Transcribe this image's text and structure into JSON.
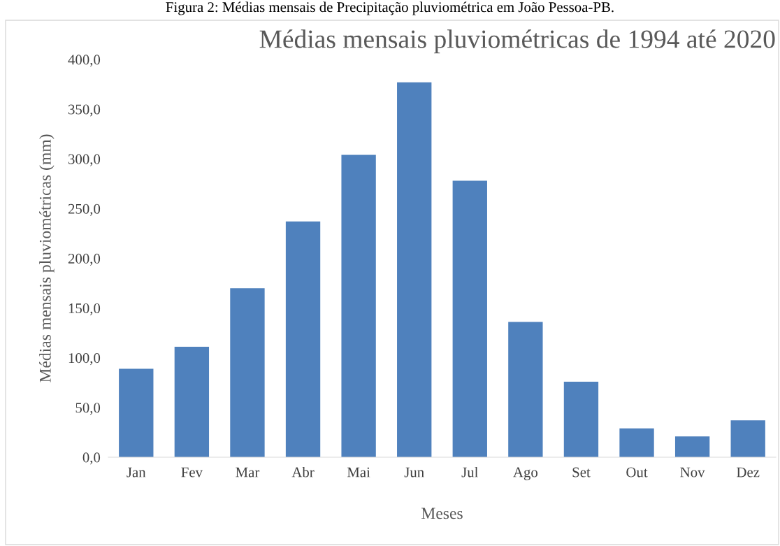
{
  "chart_data": {
    "type": "bar",
    "title": "Médias mensais pluviométricas de 1994 até 2020",
    "xlabel": "Meses",
    "ylabel": "Médias mensais pluviométricas (mm)",
    "annotations": [
      "Figura 2: Médias mensais de Precipitação pluviométrica em João Pessoa-PB."
    ],
    "categories": [
      "Jan",
      "Fev",
      "Mar",
      "Abr",
      "Mai",
      "Jun",
      "Jul",
      "Ago",
      "Set",
      "Out",
      "Nov",
      "Dez"
    ],
    "values": [
      89,
      111,
      170,
      237,
      304,
      377,
      278,
      136,
      76,
      29,
      21,
      37
    ],
    "color": "#4f81bd",
    "ylim": [
      0,
      400
    ],
    "yticks": [
      {
        "value": 0,
        "label": "0,0"
      },
      {
        "value": 50,
        "label": "50,0"
      },
      {
        "value": 100,
        "label": "100,0"
      },
      {
        "value": 150,
        "label": "150,0"
      },
      {
        "value": 200,
        "label": "200,0"
      },
      {
        "value": 250,
        "label": "250,0"
      },
      {
        "value": 300,
        "label": "300,0"
      },
      {
        "value": 350,
        "label": "350,0"
      },
      {
        "value": 400,
        "label": "400,0"
      }
    ]
  }
}
